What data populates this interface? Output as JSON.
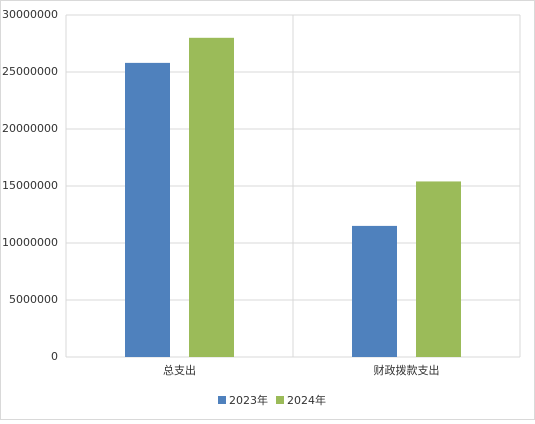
{
  "chart_data": {
    "type": "bar",
    "categories": [
      "总支出",
      "财政拨款支出"
    ],
    "series": [
      {
        "name": "2023年",
        "color": "#4f81bd",
        "values": [
          25800000,
          11500000
        ]
      },
      {
        "name": "2024年",
        "color": "#9bbb59",
        "values": [
          28000000,
          15400000
        ]
      }
    ],
    "ylim": [
      0,
      30000000
    ],
    "yticks": [
      0,
      5000000,
      10000000,
      15000000,
      20000000,
      25000000,
      30000000
    ],
    "grid": true,
    "legend": "bottom"
  }
}
